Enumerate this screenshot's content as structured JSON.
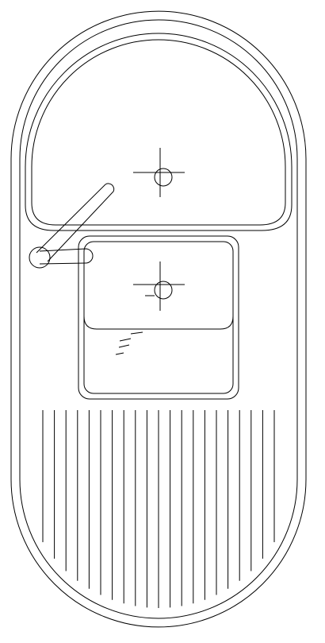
{
  "drawing": {
    "subject": "sink-plan",
    "labels": [],
    "line_color": "#000000",
    "background_color": "#ffffff"
  }
}
